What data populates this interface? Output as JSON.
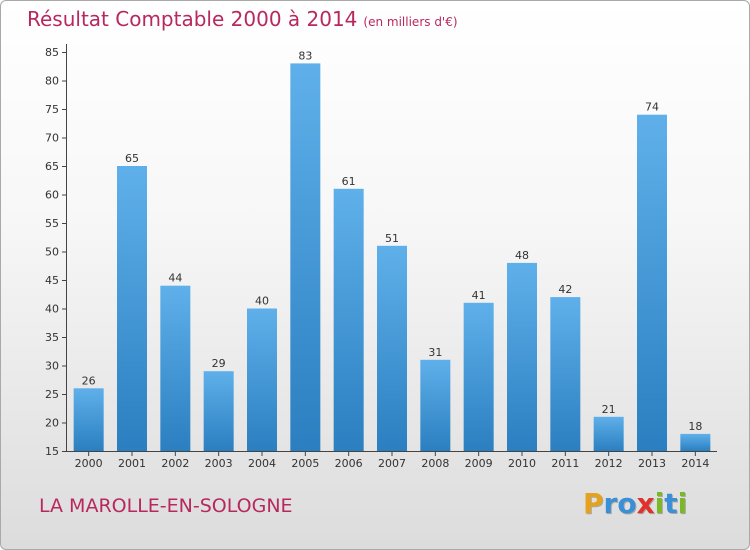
{
  "header": {
    "title": "Résultat Comptable 2000 à 2014",
    "unit": "(en milliers d'€)"
  },
  "footer": {
    "commune": "LA MAROLLE-EN-SOLOGNE",
    "logo_letters": [
      "P",
      "r",
      "o",
      "x",
      "i",
      "t",
      "i"
    ]
  },
  "colors": {
    "title": "#b8285e",
    "bar_top": "#5fb0ea",
    "bar_bottom": "#2b7fc0",
    "logo": [
      "#e5a21f",
      "#3a8fd6",
      "#3a8fd6",
      "#e0322b",
      "#7ab828",
      "#3a8fd6",
      "#7ab828"
    ]
  },
  "chart_data": {
    "type": "bar",
    "title": "Résultat Comptable 2000 à 2014",
    "subtitle": "(en milliers d'€)",
    "categories": [
      "2000",
      "2001",
      "2002",
      "2003",
      "2004",
      "2005",
      "2006",
      "2007",
      "2008",
      "2009",
      "2010",
      "2011",
      "2012",
      "2013",
      "2014"
    ],
    "values": [
      26,
      65,
      44,
      29,
      40,
      83,
      61,
      51,
      31,
      41,
      48,
      42,
      21,
      74,
      18
    ],
    "ylim": [
      15,
      85
    ],
    "yticks": [
      15,
      20,
      25,
      30,
      35,
      40,
      45,
      50,
      55,
      60,
      65,
      70,
      75,
      80,
      85
    ],
    "grid": false,
    "xlabel": "",
    "ylabel": ""
  }
}
